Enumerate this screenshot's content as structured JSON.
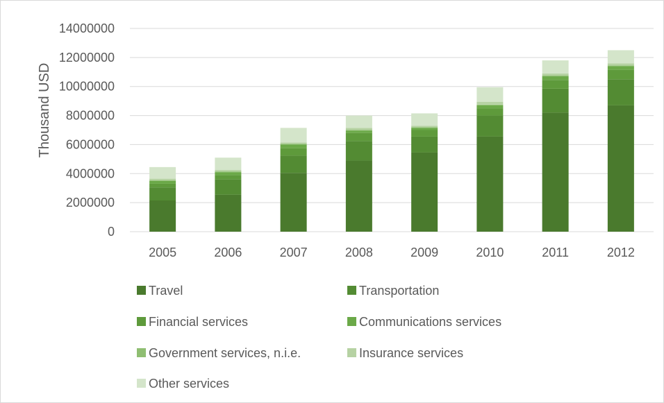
{
  "chart_data": {
    "type": "bar",
    "stacked": true,
    "title": "",
    "xlabel": "",
    "ylabel": "Thousand USD",
    "ylim": [
      0,
      14000000
    ],
    "yticks": [
      "0",
      "2000000",
      "4000000",
      "6000000",
      "8000000",
      "10000000",
      "12000000",
      "14000000"
    ],
    "grid": true,
    "legend_position": "bottom",
    "categories": [
      "2005",
      "2006",
      "2007",
      "2008",
      "2009",
      "2010",
      "2011",
      "2012"
    ],
    "series": [
      {
        "name": "Travel",
        "color": "#4a7a2d",
        "values": [
          2150000,
          2550000,
          4050000,
          4900000,
          5450000,
          6550000,
          8200000,
          8700000
        ]
      },
      {
        "name": "Transportation",
        "color": "#538b33",
        "values": [
          900000,
          1050000,
          1200000,
          1350000,
          1100000,
          1450000,
          1650000,
          1800000
        ]
      },
      {
        "name": "Financial services",
        "color": "#5e9a3b",
        "values": [
          250000,
          300000,
          500000,
          550000,
          450000,
          500000,
          600000,
          650000
        ]
      },
      {
        "name": "Communications services",
        "color": "#6ba948",
        "values": [
          200000,
          200000,
          250000,
          150000,
          150000,
          200000,
          250000,
          250000
        ]
      },
      {
        "name": "Government services, n.i.e.",
        "color": "#8fbe72",
        "values": [
          50000,
          50000,
          50000,
          50000,
          50000,
          50000,
          50000,
          50000
        ]
      },
      {
        "name": "Insurance services",
        "color": "#b6d2a3",
        "values": [
          100000,
          100000,
          100000,
          150000,
          100000,
          200000,
          150000,
          150000
        ]
      },
      {
        "name": "Other services",
        "color": "#d4e5ca",
        "values": [
          800000,
          850000,
          1000000,
          850000,
          850000,
          1000000,
          900000,
          900000
        ]
      }
    ]
  }
}
